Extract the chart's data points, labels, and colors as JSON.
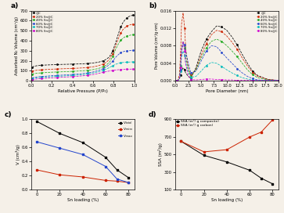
{
  "panel_a": {
    "xlabel": "Relative Pressure (P/P₀)",
    "ylabel": "Adsorbed N₂ Volume (cm³/g)",
    "series": [
      {
        "label": "@C",
        "color": "black",
        "x": [
          0.01,
          0.02,
          0.05,
          0.1,
          0.15,
          0.2,
          0.25,
          0.3,
          0.35,
          0.4,
          0.45,
          0.5,
          0.55,
          0.6,
          0.65,
          0.7,
          0.73,
          0.76,
          0.79,
          0.82,
          0.85,
          0.87,
          0.89,
          0.91,
          0.93,
          0.95,
          0.97,
          0.99
        ],
        "y": [
          135,
          142,
          150,
          155,
          158,
          160,
          162,
          164,
          165,
          167,
          168,
          170,
          173,
          178,
          185,
          200,
          215,
          240,
          295,
          380,
          480,
          540,
          580,
          608,
          628,
          642,
          650,
          655
        ]
      },
      {
        "label": "20% Sn@C",
        "color": "#cc2200",
        "x": [
          0.01,
          0.02,
          0.05,
          0.1,
          0.15,
          0.2,
          0.25,
          0.3,
          0.35,
          0.4,
          0.45,
          0.5,
          0.55,
          0.6,
          0.65,
          0.7,
          0.73,
          0.76,
          0.79,
          0.82,
          0.85,
          0.87,
          0.89,
          0.91,
          0.93,
          0.95,
          0.97,
          0.99
        ],
        "y": [
          95,
          100,
          105,
          110,
          113,
          116,
          118,
          120,
          122,
          124,
          126,
          129,
          133,
          140,
          150,
          168,
          185,
          215,
          270,
          350,
          430,
          480,
          510,
          530,
          545,
          555,
          562,
          567
        ]
      },
      {
        "label": "40% Sn@C",
        "color": "#22aa22",
        "x": [
          0.01,
          0.02,
          0.05,
          0.1,
          0.15,
          0.2,
          0.25,
          0.3,
          0.35,
          0.4,
          0.45,
          0.5,
          0.55,
          0.6,
          0.65,
          0.7,
          0.73,
          0.76,
          0.79,
          0.82,
          0.85,
          0.87,
          0.89,
          0.91,
          0.93,
          0.95,
          0.97,
          0.99
        ],
        "y": [
          65,
          70,
          75,
          80,
          83,
          86,
          88,
          90,
          92,
          94,
          97,
          100,
          105,
          112,
          122,
          140,
          158,
          185,
          240,
          315,
          375,
          405,
          425,
          438,
          447,
          452,
          457,
          460
        ]
      },
      {
        "label": "60% Sn@C",
        "color": "#2244cc",
        "x": [
          0.01,
          0.02,
          0.05,
          0.1,
          0.15,
          0.2,
          0.25,
          0.3,
          0.35,
          0.4,
          0.45,
          0.5,
          0.55,
          0.6,
          0.65,
          0.7,
          0.73,
          0.76,
          0.79,
          0.82,
          0.85,
          0.87,
          0.89,
          0.91,
          0.93,
          0.95,
          0.97,
          0.99
        ],
        "y": [
          28,
          32,
          38,
          43,
          47,
          51,
          54,
          57,
          60,
          63,
          67,
          72,
          78,
          88,
          102,
          122,
          140,
          162,
          195,
          235,
          265,
          280,
          290,
          295,
          298,
          300,
          302,
          303
        ]
      },
      {
        "label": "70% Sn@C",
        "color": "#00bbbb",
        "x": [
          0.01,
          0.02,
          0.05,
          0.1,
          0.15,
          0.2,
          0.25,
          0.3,
          0.35,
          0.4,
          0.45,
          0.5,
          0.55,
          0.6,
          0.65,
          0.7,
          0.73,
          0.76,
          0.79,
          0.82,
          0.85,
          0.87,
          0.89,
          0.91,
          0.93,
          0.95,
          0.97,
          0.99
        ],
        "y": [
          20,
          24,
          30,
          35,
          38,
          42,
          45,
          48,
          51,
          54,
          58,
          62,
          68,
          78,
          90,
          105,
          118,
          132,
          150,
          165,
          175,
          180,
          183,
          185,
          186,
          187,
          188,
          189
        ]
      },
      {
        "label": "80% Sn@C",
        "color": "#cc00cc",
        "x": [
          0.01,
          0.02,
          0.05,
          0.1,
          0.15,
          0.2,
          0.25,
          0.3,
          0.35,
          0.4,
          0.45,
          0.5,
          0.55,
          0.6,
          0.65,
          0.7,
          0.73,
          0.76,
          0.79,
          0.82,
          0.85,
          0.87,
          0.89,
          0.91,
          0.93,
          0.95,
          0.97,
          0.99
        ],
        "y": [
          8,
          12,
          18,
          22,
          26,
          30,
          33,
          36,
          39,
          42,
          46,
          50,
          55,
          63,
          73,
          85,
          92,
          98,
          104,
          108,
          111,
          112,
          113,
          114,
          115,
          116,
          117,
          118
        ]
      }
    ],
    "ylim": [
      0,
      700
    ],
    "xlim": [
      0,
      1.0
    ],
    "yticks": [
      0,
      100,
      200,
      300,
      400,
      500,
      600,
      700
    ]
  },
  "panel_b": {
    "xlabel": "Pore Diameter (nm)",
    "ylabel": "Pore Volume (cm³/g·nm)",
    "series": [
      {
        "label": "@C",
        "color": "black",
        "x": [
          0.3,
          0.5,
          0.8,
          1.0,
          1.2,
          1.5,
          1.8,
          2.0,
          2.5,
          3.0,
          4.0,
          5.0,
          6.0,
          7.0,
          8.0,
          9.0,
          10.0,
          11.0,
          12.0,
          13.0,
          14.0,
          15.0,
          16.0,
          18.0,
          20.0
        ],
        "y": [
          0.0,
          0.0001,
          0.0005,
          0.0012,
          0.0022,
          0.003,
          0.0025,
          0.0018,
          0.001,
          0.0006,
          0.003,
          0.0068,
          0.0095,
          0.0112,
          0.0125,
          0.0123,
          0.0115,
          0.01,
          0.0082,
          0.006,
          0.004,
          0.0022,
          0.0012,
          0.0003,
          0.0001
        ]
      },
      {
        "label": "20% Sn@C",
        "color": "#cc2200",
        "x": [
          0.3,
          0.5,
          0.8,
          1.0,
          1.2,
          1.5,
          1.8,
          2.0,
          2.5,
          3.0,
          4.0,
          5.0,
          6.0,
          7.0,
          8.0,
          9.0,
          10.0,
          11.0,
          12.0,
          13.0,
          14.0,
          15.0,
          16.0,
          18.0,
          20.0
        ],
        "y": [
          0.0,
          0.0002,
          0.0015,
          0.006,
          0.013,
          0.0155,
          0.012,
          0.0075,
          0.003,
          0.0012,
          0.0025,
          0.0058,
          0.0085,
          0.0105,
          0.0115,
          0.0112,
          0.0102,
          0.0088,
          0.0072,
          0.0052,
          0.0034,
          0.0019,
          0.001,
          0.0003,
          0.0001
        ]
      },
      {
        "label": "40% Sn@C",
        "color": "#22aa22",
        "x": [
          0.3,
          0.5,
          0.8,
          1.0,
          1.2,
          1.5,
          1.8,
          2.0,
          2.5,
          3.0,
          4.0,
          5.0,
          6.0,
          7.0,
          8.0,
          9.0,
          10.0,
          11.0,
          12.0,
          13.0,
          14.0,
          15.0,
          16.0,
          18.0,
          20.0
        ],
        "y": [
          0.0,
          0.0001,
          0.0008,
          0.0035,
          0.0075,
          0.009,
          0.0075,
          0.0055,
          0.0025,
          0.001,
          0.0025,
          0.0052,
          0.0075,
          0.009,
          0.0095,
          0.009,
          0.008,
          0.0068,
          0.0055,
          0.004,
          0.0025,
          0.0014,
          0.0007,
          0.0002,
          0.0001
        ]
      },
      {
        "label": "60% Sn@C",
        "color": "#2244cc",
        "x": [
          0.3,
          0.5,
          0.8,
          1.0,
          1.2,
          1.5,
          1.8,
          2.0,
          2.5,
          3.0,
          4.0,
          5.0,
          6.0,
          7.0,
          8.0,
          9.0,
          10.0,
          11.0,
          12.0,
          13.0,
          14.0,
          15.0,
          16.0,
          18.0,
          20.0
        ],
        "y": [
          0.0,
          0.0001,
          0.0005,
          0.0025,
          0.0065,
          0.0085,
          0.0082,
          0.0068,
          0.004,
          0.0018,
          0.0022,
          0.0045,
          0.0068,
          0.008,
          0.0078,
          0.0065,
          0.0052,
          0.004,
          0.0028,
          0.0018,
          0.001,
          0.0005,
          0.0002,
          0.0001,
          0.0001
        ]
      },
      {
        "label": "70% Sn@C",
        "color": "#00bbbb",
        "x": [
          0.3,
          0.5,
          0.8,
          1.0,
          1.2,
          1.5,
          1.8,
          2.0,
          2.5,
          3.0,
          4.0,
          5.0,
          6.0,
          7.0,
          8.0,
          9.0,
          10.0,
          11.0,
          12.0,
          13.0,
          14.0,
          15.0,
          16.0,
          18.0,
          20.0
        ],
        "y": [
          0.0,
          0.0001,
          0.0004,
          0.0022,
          0.0055,
          0.0068,
          0.0058,
          0.0042,
          0.002,
          0.0008,
          0.001,
          0.0022,
          0.0035,
          0.0042,
          0.004,
          0.0033,
          0.0025,
          0.0018,
          0.0012,
          0.0007,
          0.0004,
          0.0002,
          0.0001,
          0.0001,
          0.0001
        ]
      },
      {
        "label": "80% Sn@C",
        "color": "#cc00cc",
        "x": [
          0.3,
          0.5,
          0.8,
          1.0,
          1.2,
          1.5,
          1.8,
          2.0,
          2.5,
          3.0,
          4.0,
          5.0,
          6.0,
          7.0,
          8.0,
          9.0,
          10.0,
          11.0,
          12.0,
          13.0,
          14.0,
          15.0,
          16.0,
          18.0,
          20.0
        ],
        "y": [
          0.0,
          0.0001,
          0.0005,
          0.003,
          0.0072,
          0.009,
          0.0068,
          0.0038,
          0.0012,
          0.0003,
          0.0002,
          0.0003,
          0.0004,
          0.0004,
          0.0003,
          0.0003,
          0.0002,
          0.0002,
          0.0001,
          0.0001,
          0.0001,
          0.0001,
          0.0001,
          0.0001,
          0.0001
        ]
      }
    ],
    "ylim": [
      0,
      0.016
    ],
    "xlim": [
      0,
      20
    ],
    "yticks": [
      0.0,
      0.004,
      0.008,
      0.012,
      0.016
    ]
  },
  "panel_c": {
    "xlabel": "Sn loading (%)",
    "ylabel": "V (cm³/g)",
    "series": [
      {
        "label": "V$_{total}$",
        "color": "black",
        "x": [
          0,
          20,
          40,
          60,
          70,
          80
        ],
        "y": [
          0.97,
          0.8,
          0.67,
          0.46,
          0.28,
          0.17
        ]
      },
      {
        "label": "V$_{micro}$",
        "color": "#cc2200",
        "x": [
          0,
          20,
          40,
          60,
          70,
          80
        ],
        "y": [
          0.28,
          0.21,
          0.18,
          0.13,
          0.12,
          0.1
        ]
      },
      {
        "label": "V$_{meso}$",
        "color": "#2244cc",
        "x": [
          0,
          20,
          40,
          60,
          70,
          80
        ],
        "y": [
          0.68,
          0.59,
          0.5,
          0.33,
          0.15,
          0.1
        ]
      }
    ],
    "ylim": [
      0.0,
      1.0
    ],
    "xlim": [
      -5,
      85
    ],
    "yticks": [
      0.0,
      0.2,
      0.4,
      0.6,
      0.8,
      1.0
    ],
    "xticks": [
      0,
      20,
      40,
      60,
      80
    ]
  },
  "panel_d": {
    "xlabel": "Sn loading (%)",
    "ylabel": "SSA (m²/g)",
    "series": [
      {
        "label": "SSA (m²/ g composite)",
        "color": "black",
        "x": [
          0,
          20,
          40,
          60,
          70,
          80
        ],
        "y": [
          650,
          490,
          415,
          320,
          230,
          165
        ]
      },
      {
        "label": "SSA (m²/ g carbon)",
        "color": "#cc2200",
        "x": [
          0,
          20,
          40,
          60,
          70,
          80
        ],
        "y": [
          650,
          530,
          555,
          700,
          755,
          895
        ]
      }
    ],
    "ylim": [
      100,
      900
    ],
    "xlim": [
      -5,
      85
    ],
    "yticks": [
      100,
      300,
      500,
      700,
      900
    ],
    "xticks": [
      0,
      20,
      40,
      60,
      80
    ]
  },
  "bg_color": "#f5f0e8"
}
